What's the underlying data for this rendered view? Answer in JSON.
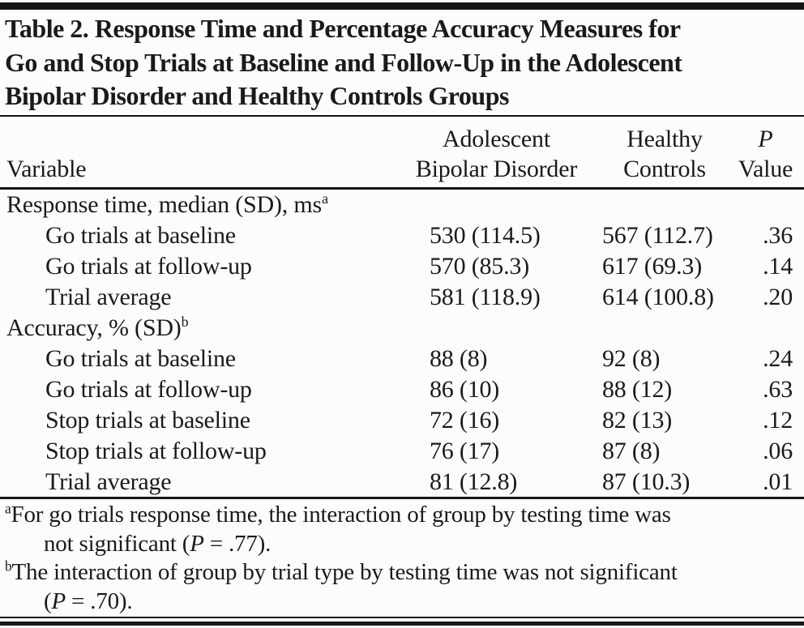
{
  "table": {
    "title_lines": [
      "Table 2. Response Time and Percentage Accuracy Measures for",
      "Go and Stop Trials at Baseline and Follow-Up in the Adolescent",
      "Bipolar Disorder and Healthy Controls Groups"
    ],
    "columns": {
      "variable": "Variable",
      "group1_line1": "Adolescent",
      "group1_line2": "Bipolar Disorder",
      "group2_line1": "Healthy",
      "group2_line2": "Controls",
      "p_line1": "P",
      "p_line2": "Value"
    },
    "sections": [
      {
        "header": "Response time, median (SD), ms",
        "header_sup": "a",
        "rows": [
          {
            "label": "Go trials at baseline",
            "abd": "530 (114.5)",
            "hc": "567 (112.7)",
            "p": ".36"
          },
          {
            "label": "Go trials at follow-up",
            "abd": "570 (85.3)",
            "hc": "617 (69.3)",
            "p": ".14"
          },
          {
            "label": "Trial average",
            "abd": "581 (118.9)",
            "hc": "614 (100.8)",
            "p": ".20"
          }
        ]
      },
      {
        "header": "Accuracy, % (SD)",
        "header_sup": "b",
        "rows": [
          {
            "label": "Go trials at baseline",
            "abd": "88 (8)",
            "hc": "92 (8)",
            "p": ".24"
          },
          {
            "label": "Go trials at follow-up",
            "abd": "86 (10)",
            "hc": "88 (12)",
            "p": ".63"
          },
          {
            "label": "Stop trials at baseline",
            "abd": "72 (16)",
            "hc": "82 (13)",
            "p": ".12"
          },
          {
            "label": "Stop trials at follow-up",
            "abd": "76 (17)",
            "hc": "87 (8)",
            "p": ".06"
          },
          {
            "label": "Trial average",
            "abd": "81 (12.8)",
            "hc": "87 (10.3)",
            "p": ".01"
          }
        ]
      }
    ],
    "footnotes": [
      {
        "marker": "a",
        "line1": "For go trials response time, the interaction of group by testing time was",
        "line2_pre": "not significant (",
        "p": "P",
        "line2_post": " = .77)."
      },
      {
        "marker": "b",
        "line1": "The interaction of group by trial type by testing time was not significant",
        "line2_pre": "(",
        "p": "P",
        "line2_post": " = .70)."
      }
    ]
  },
  "colors": {
    "text": "#1a1a1a",
    "rule": "#161616",
    "background": "#fcfcfb"
  }
}
